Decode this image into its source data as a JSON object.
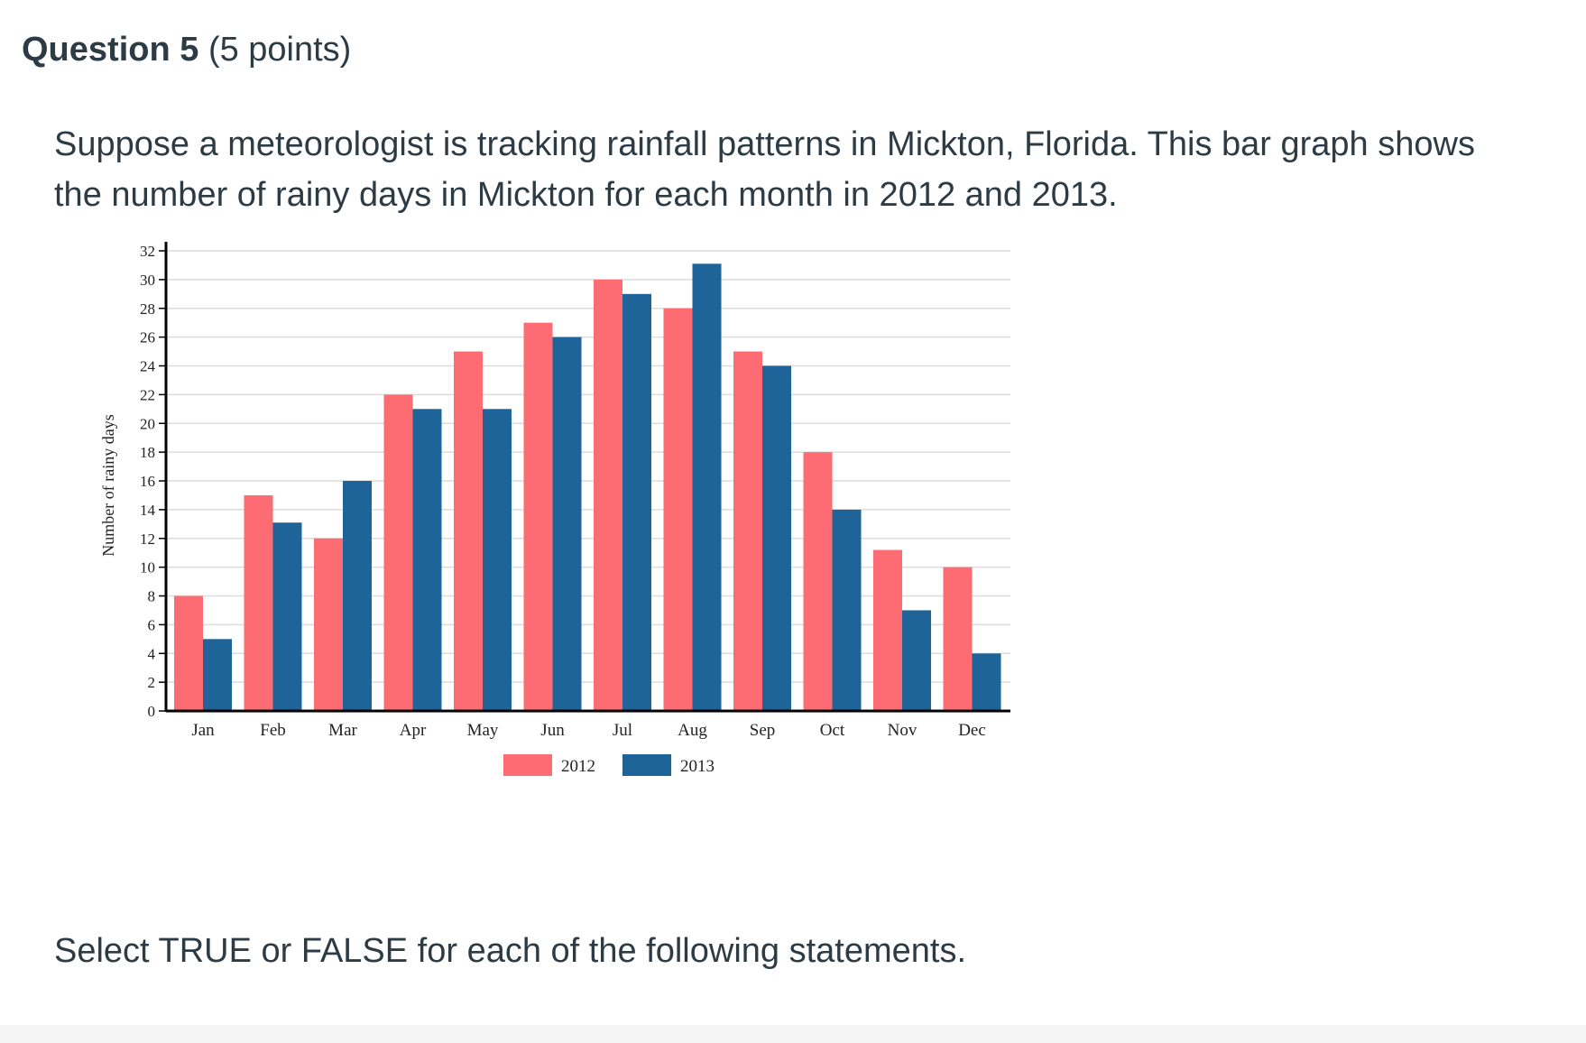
{
  "question": {
    "title": "Question 5",
    "points": "(5 points)"
  },
  "prompt": "Suppose a meteorologist is tracking rainfall patterns in Mickton, Florida. This bar graph shows the number of rainy days in Mickton for each month in 2012 and 2013.",
  "instruction": "Select TRUE or FALSE for each of the following statements.",
  "chart_data": {
    "type": "bar",
    "title": "",
    "xlabel": "",
    "ylabel": "Number of rainy days",
    "ylim": [
      0,
      32
    ],
    "yticks": [
      0,
      2,
      4,
      6,
      8,
      10,
      12,
      14,
      16,
      18,
      20,
      22,
      24,
      26,
      28,
      30,
      32
    ],
    "grid": true,
    "legend": "bottom-center",
    "categories": [
      "Jan",
      "Feb",
      "Mar",
      "Apr",
      "May",
      "Jun",
      "Jul",
      "Aug",
      "Sep",
      "Oct",
      "Nov",
      "Dec"
    ],
    "series": [
      {
        "name": "2012",
        "color": "#fe6c73",
        "values": [
          8,
          15,
          12,
          22,
          25,
          27,
          30,
          28,
          25,
          18,
          11.2,
          10
        ]
      },
      {
        "name": "2013",
        "color": "#1e6498",
        "values": [
          5,
          13.1,
          16,
          21,
          21,
          26,
          29,
          31.1,
          24,
          14,
          7,
          4
        ]
      }
    ]
  }
}
